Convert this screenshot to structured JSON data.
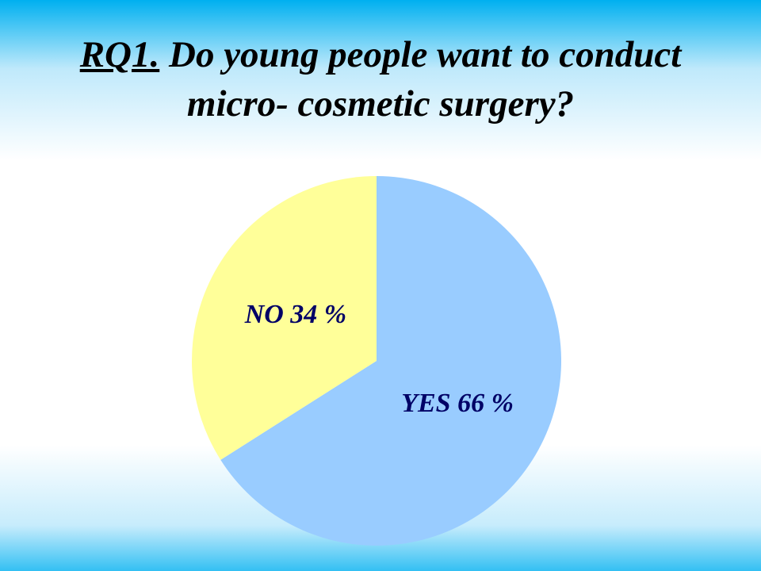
{
  "chart_data": {
    "type": "pie",
    "title_label": "RQ1.",
    "title": "Do young people want to conduct  micro- cosmetic surgery?",
    "categories": [
      "YES",
      "NO"
    ],
    "values": [
      66,
      34
    ],
    "value_labels": [
      "66 %",
      "34 %"
    ],
    "colors": [
      "#99ccff",
      "#ffff99"
    ],
    "label_color": "#000066"
  }
}
